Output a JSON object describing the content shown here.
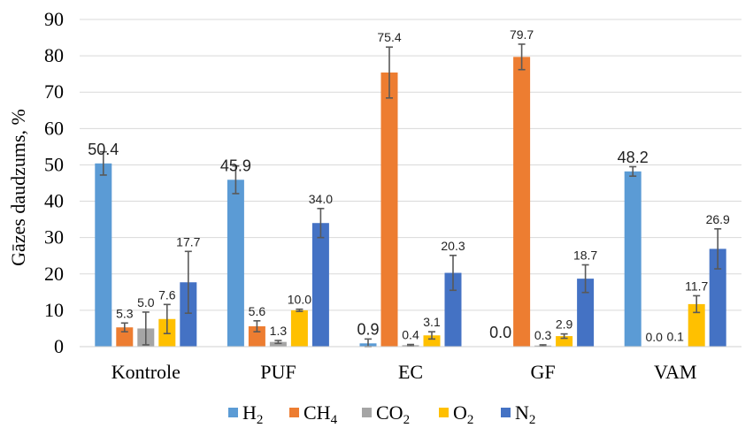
{
  "chart_data": {
    "type": "bar",
    "ylabel": "Gāzes daudzums, %",
    "ylim": [
      0,
      90
    ],
    "yticks": [
      0,
      10,
      20,
      30,
      40,
      50,
      60,
      70,
      80,
      90
    ],
    "categories": [
      "Kontrole",
      "PUF",
      "EC",
      "GF",
      "VAM"
    ],
    "grid": true,
    "legend_position": "bottom",
    "series": [
      {
        "name": "H2",
        "legend_main": "H",
        "legend_sub": "2",
        "color": "#5B9BD5",
        "values": [
          50.4,
          45.9,
          0.9,
          0.0,
          48.2
        ],
        "labels": [
          "50.4",
          "45.9",
          "0.9",
          "0.0",
          "48.2"
        ],
        "errors": [
          3.2,
          3.8,
          1.2,
          0.0,
          1.3
        ]
      },
      {
        "name": "CH4",
        "legend_main": "CH",
        "legend_sub": "4",
        "color": "#ED7D31",
        "values": [
          5.3,
          5.6,
          75.4,
          79.7,
          0.0
        ],
        "labels": [
          "5.3",
          "5.6",
          "75.4",
          "79.7",
          "0.0"
        ],
        "errors": [
          1.2,
          1.5,
          7.0,
          3.5,
          0.0
        ]
      },
      {
        "name": "CO2",
        "legend_main": "CO",
        "legend_sub": "2",
        "color": "#A5A5A5",
        "values": [
          5.0,
          1.3,
          0.4,
          0.3,
          0.1
        ],
        "labels": [
          "5.0",
          "1.3",
          "0.4",
          "0.3",
          "0.1"
        ],
        "errors": [
          4.5,
          0.4,
          0.2,
          0.2,
          0.0
        ]
      },
      {
        "name": "O2",
        "legend_main": "O",
        "legend_sub": "2",
        "color": "#FFC000",
        "values": [
          7.6,
          10.0,
          3.1,
          2.9,
          11.7
        ],
        "labels": [
          "7.6",
          "10.0",
          "3.1",
          "2.9",
          "11.7"
        ],
        "errors": [
          4.0,
          0.3,
          1.0,
          0.6,
          2.3
        ]
      },
      {
        "name": "N2",
        "legend_main": "N",
        "legend_sub": "2",
        "color": "#4472C4",
        "values": [
          17.7,
          34.0,
          20.3,
          18.7,
          26.9
        ],
        "labels": [
          "17.7",
          "34.0",
          "20.3",
          "18.7",
          "26.9"
        ],
        "errors": [
          8.5,
          4.0,
          4.8,
          3.8,
          5.5
        ]
      }
    ]
  }
}
